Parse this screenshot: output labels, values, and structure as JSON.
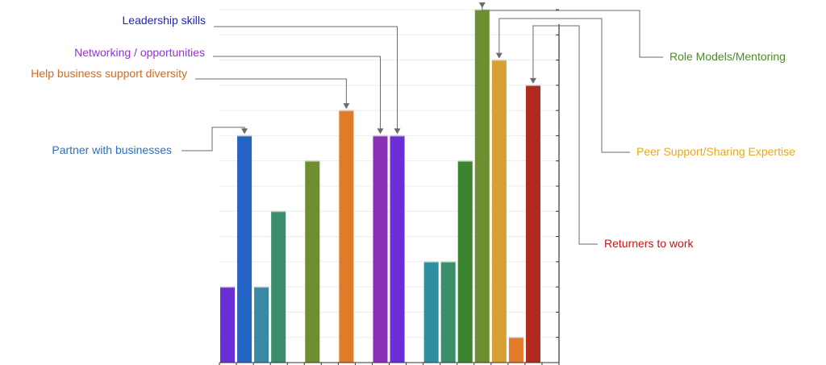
{
  "chart_data": {
    "type": "bar",
    "categories": [
      "",
      "",
      "",
      "",
      "",
      "",
      "",
      "",
      "",
      "",
      "",
      "",
      "",
      "",
      "",
      "",
      "",
      "",
      "",
      ""
    ],
    "values": [
      3,
      9,
      3,
      6,
      0,
      8,
      0,
      10,
      0,
      9,
      9,
      0,
      4,
      4,
      8,
      14,
      12,
      1,
      11,
      0
    ],
    "bar_colors": [
      "#6a2fd6",
      "#2464c4",
      "#3a8aa6",
      "#3a8e6b",
      "#ffffff",
      "#6d8f2f",
      "#ffffff",
      "#e07b2a",
      "#ffffff",
      "#8a2fb8",
      "#6a2fd6",
      "#ffffff",
      "#2f8fa0",
      "#3a8e6b",
      "#3b8430",
      "#6d8f2f",
      "#d6a132",
      "#e07b2a",
      "#b02a22",
      "#ffffff"
    ],
    "ylim": [
      0,
      14
    ],
    "grid": true,
    "annotations": [
      {
        "text": "Leadership skills",
        "bar_index": 10,
        "color": "#1e22c8"
      },
      {
        "text": "Networking / opportunities",
        "bar_index": 9,
        "color": "#9b2ee0"
      },
      {
        "text": "Help business support diversity",
        "bar_index": 7,
        "color": "#d8681e"
      },
      {
        "text": "Partner with businesses",
        "bar_index": 1,
        "color": "#2f6fb5"
      },
      {
        "text": "Role Models/Mentoring",
        "bar_index": 15,
        "color": "#4f8a2a"
      },
      {
        "text": "Peer Support/Sharing Expertise",
        "bar_index": 16,
        "color": "#e8a81c"
      },
      {
        "text": "Returners to work",
        "bar_index": 18,
        "color": "#c01818"
      }
    ]
  }
}
